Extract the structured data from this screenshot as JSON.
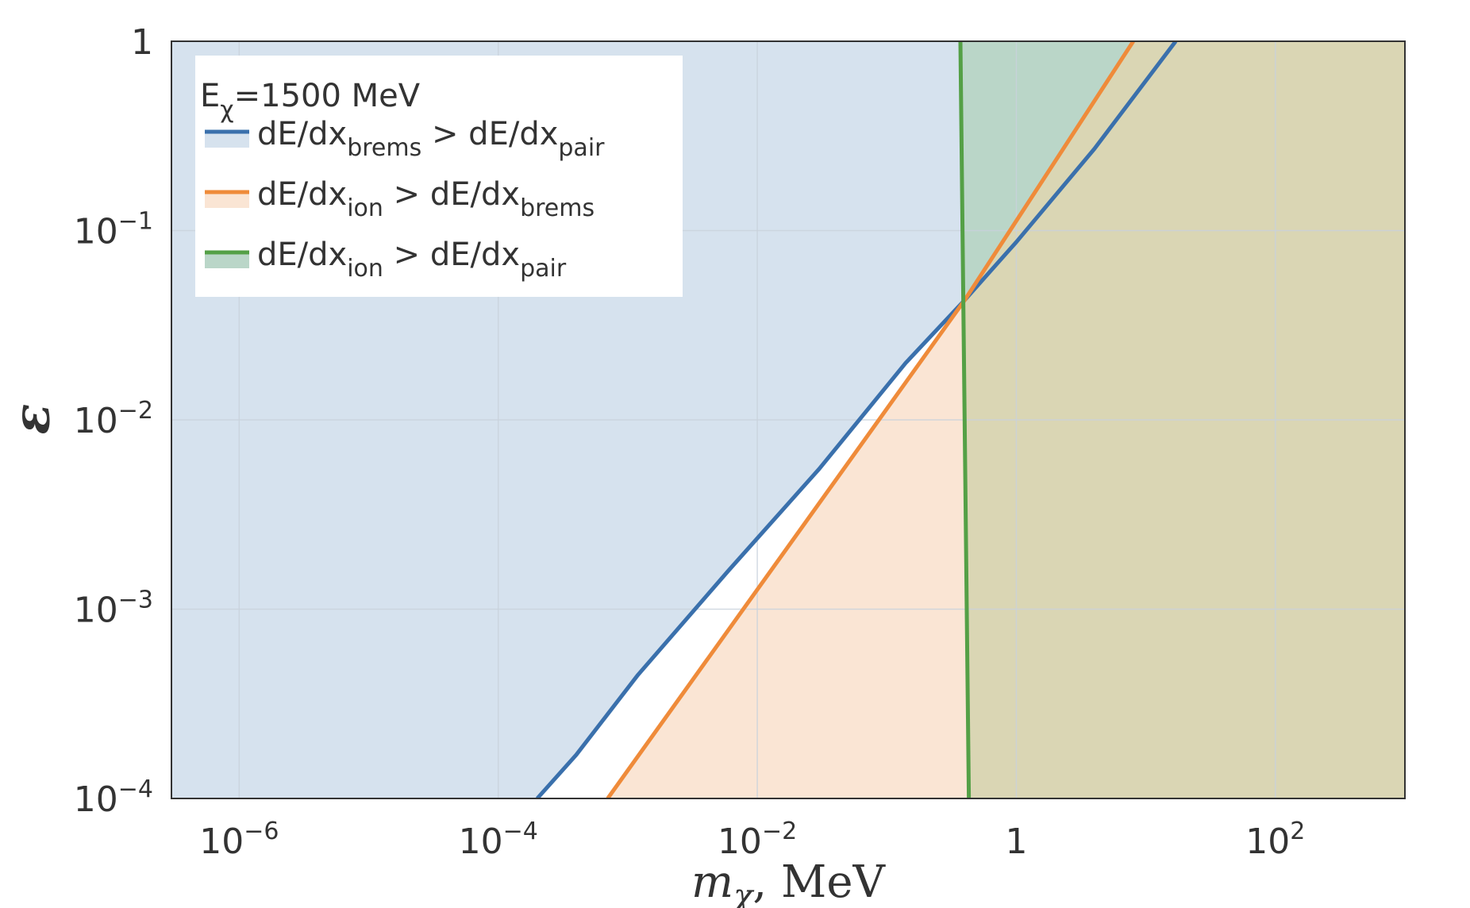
{
  "chart_data": {
    "type": "area",
    "xscale": "log",
    "yscale": "log",
    "xlim": [
      3e-07,
      1000
    ],
    "ylim": [
      0.0001,
      1
    ],
    "grid": true,
    "legend_position": "top-left",
    "xlabel": {
      "base": "m",
      "sub": "χ",
      "rest": ", MeV"
    },
    "ylabel": "ε",
    "legend_title": {
      "base": "E",
      "sub": "χ",
      "rest": "=1500 MeV"
    },
    "xticks": [
      {
        "value": 1e-06,
        "base": "10",
        "exp": "−6"
      },
      {
        "value": 0.0001,
        "base": "10",
        "exp": "−4"
      },
      {
        "value": 0.01,
        "base": "10",
        "exp": "−2"
      },
      {
        "value": 1,
        "base": "1",
        "exp": ""
      },
      {
        "value": 100,
        "base": "10",
        "exp": "2"
      }
    ],
    "yticks": [
      {
        "value": 0.0001,
        "base": "10",
        "exp": "−4"
      },
      {
        "value": 0.001,
        "base": "10",
        "exp": "−3"
      },
      {
        "value": 0.01,
        "base": "10",
        "exp": "−2"
      },
      {
        "value": 0.1,
        "base": "10",
        "exp": "−1"
      },
      {
        "value": 1,
        "base": "1",
        "exp": ""
      }
    ],
    "series": [
      {
        "name": "dE/dx_brems > dE/dx_pair",
        "legend_parts": [
          {
            "t": "dE/dx"
          },
          {
            "t": "brems",
            "sub": true
          },
          {
            "t": " > dE/dx"
          },
          {
            "t": "pair",
            "sub": true
          }
        ],
        "color": "#3a70ac",
        "fill_color": "#d6e2ee",
        "fill": "above",
        "x": [
          0.0002,
          0.0004,
          0.0012,
          0.006,
          0.03,
          0.14,
          0.4,
          1.0,
          4.0,
          17.0
        ],
        "y": [
          0.0001,
          0.00017,
          0.00045,
          0.0016,
          0.0055,
          0.02,
          0.043,
          0.087,
          0.27,
          1.0
        ]
      },
      {
        "name": "dE/dx_ion > dE/dx_brems",
        "legend_parts": [
          {
            "t": "dE/dx"
          },
          {
            "t": "ion",
            "sub": true
          },
          {
            "t": "  > dE/dx"
          },
          {
            "t": "brems",
            "sub": true
          }
        ],
        "color": "#ef8b3a",
        "fill_color": "#fae5d4",
        "fill": "below",
        "x": [
          0.0007,
          0.4,
          8.0
        ],
        "y": [
          0.0001,
          0.043,
          1.0
        ]
      },
      {
        "name": "dE/dx_ion > dE/dx_pair",
        "legend_parts": [
          {
            "t": "dE/dx"
          },
          {
            "t": "ion",
            "sub": true
          },
          {
            "t": "  > dE/dx"
          },
          {
            "t": "pair",
            "sub": true
          }
        ],
        "color": "#54a046",
        "fill_color": "#bad6c8",
        "fill": "right",
        "x": [
          0.37,
          0.43
        ],
        "y": [
          1.0,
          0.0001
        ]
      }
    ],
    "overlap_fill_color": "#dad6b4"
  }
}
